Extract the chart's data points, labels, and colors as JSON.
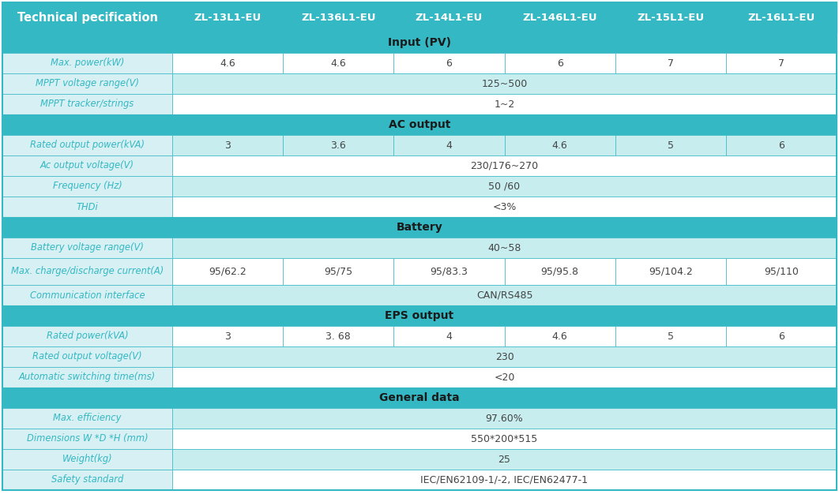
{
  "header_col": "Technical pecification",
  "columns": [
    "ZL-13L1-EU",
    "ZL-136L1-EU",
    "ZL-14L1-EU",
    "ZL-146L1-EU",
    "ZL-15L1-EU",
    "ZL-16L1-EU"
  ],
  "sections": [
    {
      "section_label": "Input (PV)",
      "rows": [
        {
          "label": "Max. power(kW)",
          "values": [
            "4.6",
            "4.6",
            "6",
            "6",
            "7",
            "7"
          ],
          "span": false
        },
        {
          "label": "MPPT voltage range(V)",
          "values": [
            "125~500"
          ],
          "span": true
        },
        {
          "label": "MPPT tracker/strings",
          "values": [
            "1~2"
          ],
          "span": true
        }
      ]
    },
    {
      "section_label": "AC output",
      "rows": [
        {
          "label": "Rated output power(kVA)",
          "values": [
            "3",
            "3.6",
            "4",
            "4.6",
            "5",
            "6"
          ],
          "span": false
        },
        {
          "label": "Ac output voltage(V)",
          "values": [
            "230/176~270"
          ],
          "span": true
        },
        {
          "label": "Frequency (Hz)",
          "values": [
            "50 /60"
          ],
          "span": true
        },
        {
          "label": "THDi",
          "values": [
            "<3%"
          ],
          "span": true
        }
      ]
    },
    {
      "section_label": "Battery",
      "rows": [
        {
          "label": "Battery voltage range(V)",
          "values": [
            "40~58"
          ],
          "span": true
        },
        {
          "label": "Max. charge/discharge current(A)",
          "values": [
            "95/62.2",
            "95/75",
            "95/83.3",
            "95/95.8",
            "95/104.2",
            "95/110"
          ],
          "span": false
        },
        {
          "label": "Communication interface",
          "values": [
            "CAN/RS485"
          ],
          "span": true
        }
      ]
    },
    {
      "section_label": "EPS output",
      "rows": [
        {
          "label": "Rated power(kVA)",
          "values": [
            "3",
            "3. 68",
            "4",
            "4.6",
            "5",
            "6"
          ],
          "span": false
        },
        {
          "label": "Rated output voltage(V)",
          "values": [
            "230"
          ],
          "span": true
        },
        {
          "label": "Automatic switching time(ms)",
          "values": [
            "<20"
          ],
          "span": true
        }
      ]
    },
    {
      "section_label": "General data",
      "rows": [
        {
          "label": "Max. efficiency",
          "values": [
            "97.60%"
          ],
          "span": true
        },
        {
          "label": "Dimensions W *D *H (mm)",
          "values": [
            "550*200*515"
          ],
          "span": true
        },
        {
          "label": "Weight(kg)",
          "values": [
            "25"
          ],
          "span": true
        },
        {
          "label": "Safety standard",
          "values": [
            "IEC/EN62109-1/-2, IEC/EN62477-1"
          ],
          "span": true
        }
      ]
    }
  ],
  "color_header_bg": "#34B8C4",
  "color_section_bg": "#34B8C4",
  "color_row_bg_white": "#FFFFFF",
  "color_row_bg_teal": "#C8EDEF",
  "color_label_bg_teal": "#D6F0F3",
  "color_label_text": "#34B8C4",
  "color_value_text": "#444444",
  "color_border": "#34B8C4",
  "color_section_text": "#1a1a1a",
  "color_header_text": "#FFFFFF"
}
